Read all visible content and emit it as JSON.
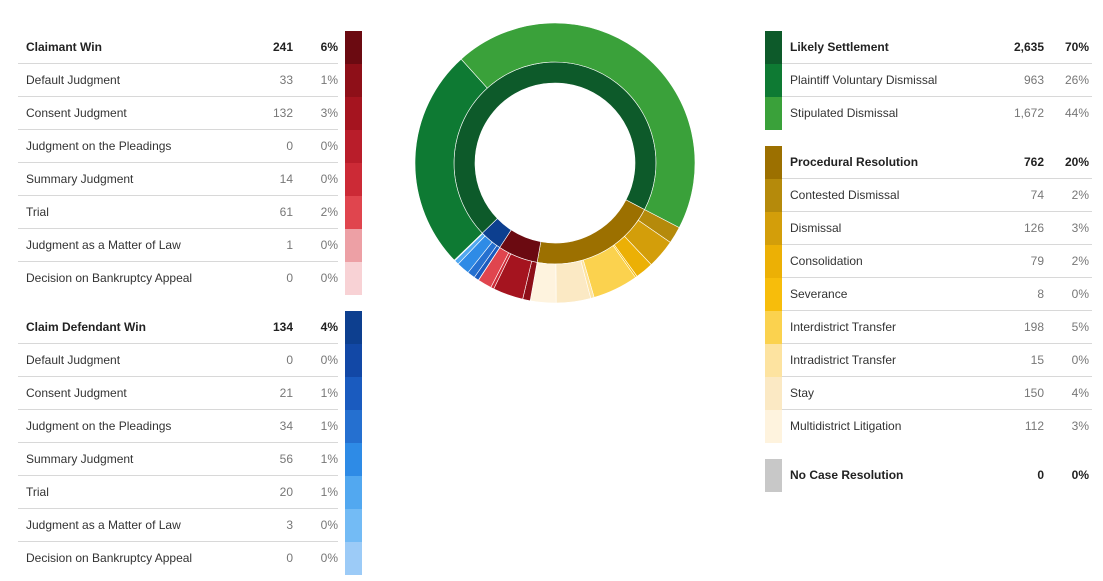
{
  "left_groups": [
    {
      "name": "Claimant Win",
      "count": "241",
      "percent": "6%",
      "color": "#6b0a11",
      "items": [
        {
          "label": "Default Judgment",
          "count": "33",
          "percent": "1%",
          "color": "#8e0f18"
        },
        {
          "label": "Consent Judgment",
          "count": "132",
          "percent": "3%",
          "color": "#a5141f"
        },
        {
          "label": "Judgment on the Pleadings",
          "count": "0",
          "percent": "0%",
          "color": "#b91d2a"
        },
        {
          "label": "Summary Judgment",
          "count": "14",
          "percent": "0%",
          "color": "#cc2a36"
        },
        {
          "label": "Trial",
          "count": "61",
          "percent": "2%",
          "color": "#e0454e"
        },
        {
          "label": "Judgment as a Matter of Law",
          "count": "1",
          "percent": "0%",
          "color": "#eda0a5"
        },
        {
          "label": "Decision on Bankruptcy Appeal",
          "count": "0",
          "percent": "0%",
          "color": "#f8d2d5"
        }
      ]
    },
    {
      "name": "Claim Defendant Win",
      "count": "134",
      "percent": "4%",
      "color": "#0d3f8f",
      "items": [
        {
          "label": "Default Judgment",
          "count": "0",
          "percent": "0%",
          "color": "#1248a6"
        },
        {
          "label": "Consent Judgment",
          "count": "21",
          "percent": "1%",
          "color": "#1a5bbf"
        },
        {
          "label": "Judgment on the Pleadings",
          "count": "34",
          "percent": "1%",
          "color": "#2570d0"
        },
        {
          "label": "Summary Judgment",
          "count": "56",
          "percent": "1%",
          "color": "#2e8be6"
        },
        {
          "label": "Trial",
          "count": "20",
          "percent": "1%",
          "color": "#52a8f0"
        },
        {
          "label": "Judgment as a Matter of Law",
          "count": "3",
          "percent": "0%",
          "color": "#73bbf5"
        },
        {
          "label": "Decision on Bankruptcy Appeal",
          "count": "0",
          "percent": "0%",
          "color": "#9ccbf7"
        }
      ]
    }
  ],
  "right_groups": [
    {
      "name": "Likely Settlement",
      "count": "2,635",
      "percent": "70%",
      "color": "#0d5a2a",
      "items": [
        {
          "label": "Plaintiff Voluntary Dismissal",
          "count": "963",
          "percent": "26%",
          "color": "#0e7a33"
        },
        {
          "label": "Stipulated Dismissal",
          "count": "1,672",
          "percent": "44%",
          "color": "#3aa13a"
        }
      ]
    },
    {
      "name": "Procedural Resolution",
      "count": "762",
      "percent": "20%",
      "color": "#9c7000",
      "items": [
        {
          "label": "Contested Dismissal",
          "count": "74",
          "percent": "2%",
          "color": "#b58a0b"
        },
        {
          "label": "Dismissal",
          "count": "126",
          "percent": "3%",
          "color": "#d39e0a"
        },
        {
          "label": "Consolidation",
          "count": "79",
          "percent": "2%",
          "color": "#ecb005"
        },
        {
          "label": "Severance",
          "count": "8",
          "percent": "0%",
          "color": "#f7bd0b"
        },
        {
          "label": "Interdistrict Transfer",
          "count": "198",
          "percent": "5%",
          "color": "#fbd24e"
        },
        {
          "label": "Intradistrict Transfer",
          "count": "15",
          "percent": "0%",
          "color": "#fde3a0"
        },
        {
          "label": "Stay",
          "count": "150",
          "percent": "4%",
          "color": "#fbe9c4"
        },
        {
          "label": "Multidistrict Litigation",
          "count": "112",
          "percent": "3%",
          "color": "#fef3de"
        }
      ]
    },
    {
      "name": "No Case Resolution",
      "count": "0",
      "percent": "0%",
      "color": "#c8c8c8",
      "items": []
    }
  ],
  "chart_data": {
    "type": "pie",
    "style": "two-ring donut (inner ring = categories, outer ring = subcategories)",
    "inner": [
      {
        "label": "Likely Settlement",
        "value": 2635,
        "color": "#0d5a2a"
      },
      {
        "label": "Procedural Resolution",
        "value": 762,
        "color": "#9c7000"
      },
      {
        "label": "Claimant Win",
        "value": 241,
        "color": "#6b0a11"
      },
      {
        "label": "Claim Defendant Win",
        "value": 134,
        "color": "#0d3f8f"
      },
      {
        "label": "No Case Resolution",
        "value": 0,
        "color": "#c8c8c8"
      }
    ],
    "outer": [
      {
        "label": "Plaintiff Voluntary Dismissal",
        "value": 963,
        "color": "#0e7a33"
      },
      {
        "label": "Stipulated Dismissal",
        "value": 1672,
        "color": "#3aa13a"
      },
      {
        "label": "Contested Dismissal",
        "value": 74,
        "color": "#b58a0b"
      },
      {
        "label": "Dismissal",
        "value": 126,
        "color": "#d39e0a"
      },
      {
        "label": "Consolidation",
        "value": 79,
        "color": "#ecb005"
      },
      {
        "label": "Severance",
        "value": 8,
        "color": "#f7bd0b"
      },
      {
        "label": "Interdistrict Transfer",
        "value": 198,
        "color": "#fbd24e"
      },
      {
        "label": "Intradistrict Transfer",
        "value": 15,
        "color": "#fde3a0"
      },
      {
        "label": "Stay",
        "value": 150,
        "color": "#fbe9c4"
      },
      {
        "label": "Multidistrict Litigation",
        "value": 112,
        "color": "#fef3de"
      },
      {
        "label": "Default Judgment",
        "value": 33,
        "color": "#8e0f18"
      },
      {
        "label": "Consent Judgment",
        "value": 132,
        "color": "#a5141f"
      },
      {
        "label": "Judgment on the Pleadings",
        "value": 0,
        "color": "#b91d2a"
      },
      {
        "label": "Summary Judgment",
        "value": 14,
        "color": "#cc2a36"
      },
      {
        "label": "Trial",
        "value": 61,
        "color": "#e0454e"
      },
      {
        "label": "Judgment as a Matter of Law",
        "value": 1,
        "color": "#eda0a5"
      },
      {
        "label": "Decision on Bankruptcy Appeal",
        "value": 0,
        "color": "#f8d2d5"
      },
      {
        "label": "Default Judgment",
        "value": 0,
        "color": "#1248a6"
      },
      {
        "label": "Consent Judgment",
        "value": 21,
        "color": "#1a5bbf"
      },
      {
        "label": "Judgment on the Pleadings",
        "value": 34,
        "color": "#2570d0"
      },
      {
        "label": "Summary Judgment",
        "value": 56,
        "color": "#2e8be6"
      },
      {
        "label": "Trial",
        "value": 20,
        "color": "#52a8f0"
      },
      {
        "label": "Judgment as a Matter of Law",
        "value": 3,
        "color": "#73bbf5"
      },
      {
        "label": "Decision on Bankruptcy Appeal",
        "value": 0,
        "color": "#9ccbf7"
      }
    ]
  }
}
